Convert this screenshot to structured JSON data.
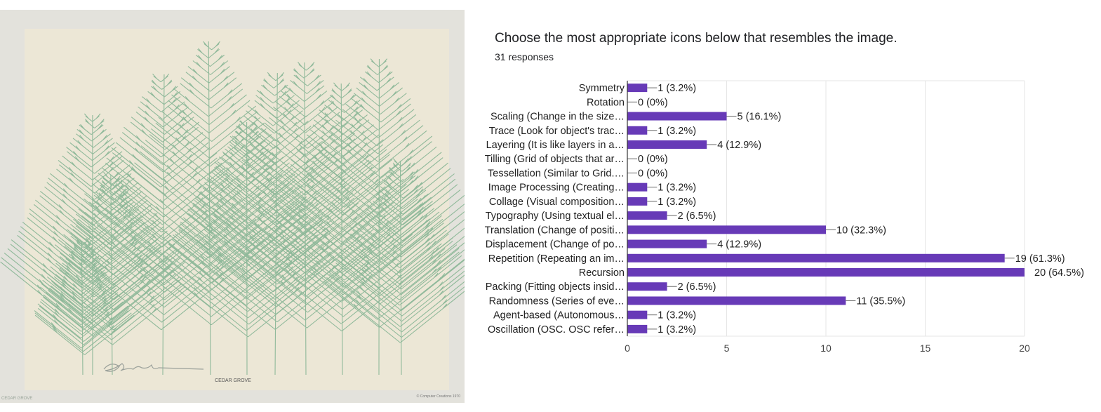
{
  "artwork": {
    "caption": "CEDAR GROVE",
    "side_label": "CEDAR GROVE",
    "copyright": "© Computer Creations 1970",
    "signature": "signature",
    "colors": {
      "paper": "#ece7d6",
      "frame": "#e3e2dc",
      "foliage": "#8fb99a"
    }
  },
  "question": {
    "title": "Choose the most appropriate icons below that resembles the image.",
    "responses": "31 responses"
  },
  "chart_data": {
    "type": "bar",
    "orientation": "horizontal",
    "categories": [
      "Symmetry",
      "Rotation",
      "Scaling (Change in the size…",
      "Trace (Look for object's trac…",
      "Layering (It is like layers in a…",
      "Tilling (Grid of objects that ar…",
      "Tessellation (Similar to Grid.…",
      "Image Processing (Creating…",
      "Collage (Visual composition…",
      "Typography (Using textual el…",
      "Translation (Change of positi…",
      "Displacement (Change of po…",
      "Repetition (Repeating an im…",
      "Recursion",
      "Packing (Fitting objects insid…",
      "Randomness (Series of eve…",
      "Agent-based (Autonomous…",
      "Oscillation (OSC. OSC refer…"
    ],
    "values": [
      1,
      0,
      5,
      1,
      4,
      0,
      0,
      1,
      1,
      2,
      10,
      4,
      19,
      20,
      2,
      11,
      1,
      1
    ],
    "value_labels": [
      "1 (3.2%)",
      "0 (0%)",
      "5 (16.1%)",
      "1 (3.2%)",
      "4 (12.9%)",
      "0 (0%)",
      "0 (0%)",
      "1 (3.2%)",
      "1 (3.2%)",
      "2 (6.5%)",
      "10 (32.3%)",
      "4 (12.9%)",
      "19 (61.3%)",
      "20 (64.5%)",
      "2 (6.5%)",
      "11 (35.5%)",
      "1 (3.2%)",
      "1 (3.2%)"
    ],
    "x_ticks": [
      "0",
      "5",
      "10",
      "15",
      "20"
    ],
    "xlim": [
      0,
      20
    ],
    "grid": true,
    "title": "",
    "xlabel": "",
    "ylabel": "",
    "colors": {
      "bar": "#673ab7",
      "grid": "#e6e6e6",
      "axis": "#333333"
    }
  }
}
